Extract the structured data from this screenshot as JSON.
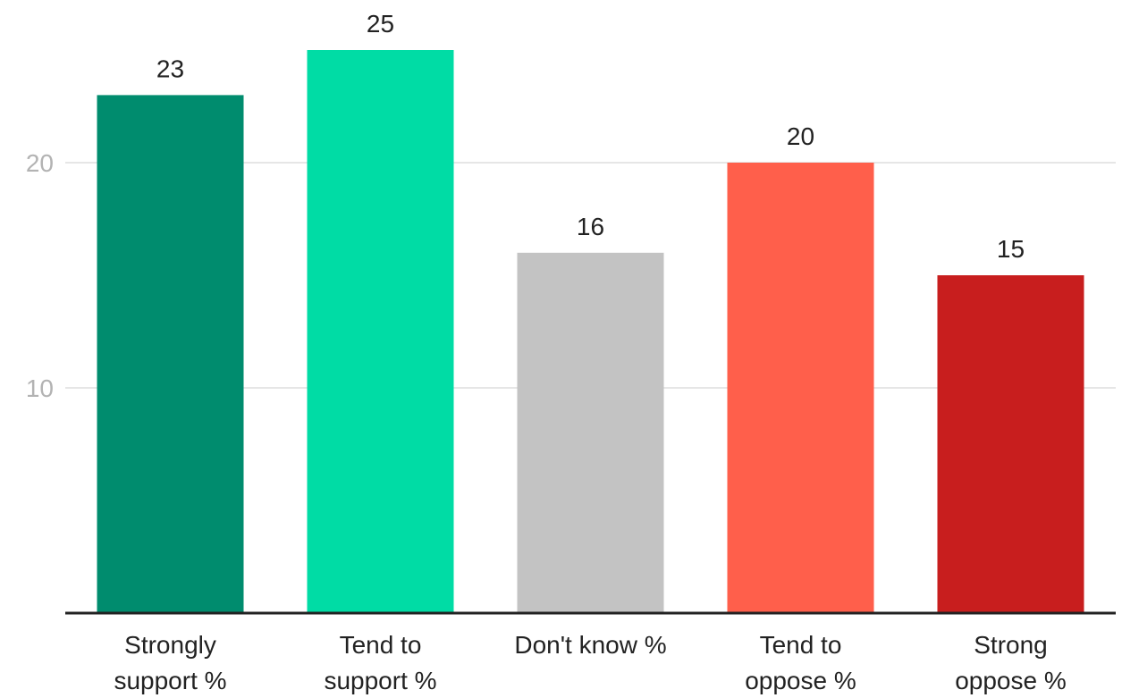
{
  "chart_data": {
    "type": "bar",
    "title": "",
    "xlabel": "",
    "ylabel": "",
    "categories": [
      [
        "Strongly",
        "support %"
      ],
      [
        "Tend to",
        "support %"
      ],
      [
        "Don't know %"
      ],
      [
        "Tend to",
        "oppose %"
      ],
      [
        "Strong",
        "oppose %"
      ]
    ],
    "values": [
      23,
      25,
      16,
      20,
      15
    ],
    "data_labels": [
      "23",
      "25",
      "16",
      "20",
      "15"
    ],
    "colors": [
      "#008c6e",
      "#00dca5",
      "#c3c3c3",
      "#ff5f4b",
      "#c81e1e"
    ],
    "ylim": [
      0,
      25
    ],
    "yticks": [
      10,
      20
    ],
    "ytick_labels": [
      "10",
      "20"
    ],
    "grid": true,
    "legend": "none"
  }
}
